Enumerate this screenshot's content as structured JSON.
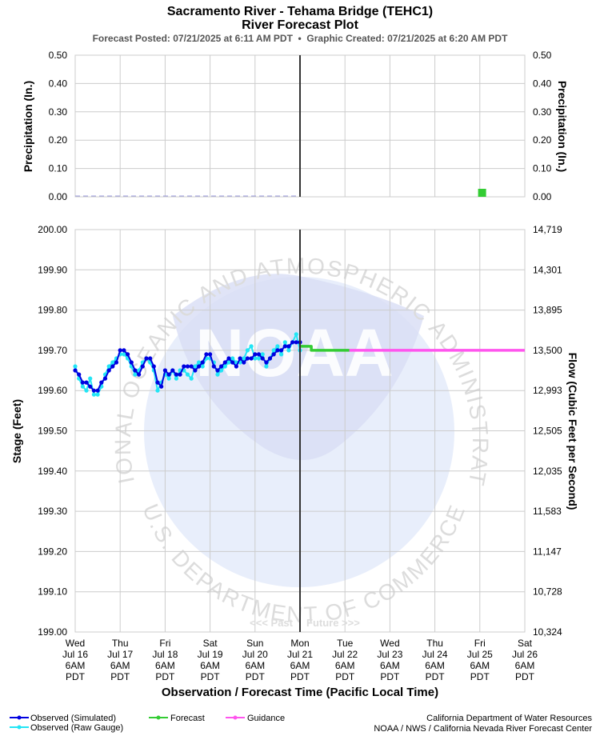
{
  "title": "Sacramento River - Tehama Bridge (TEHC1)",
  "subtitle": "River Forecast Plot",
  "posted_line": "Forecast Posted: 07/21/2025 at 6:11 AM PDT  •  Graphic Created: 07/21/2025 at 6:20 AM PDT",
  "past_label": "<<< Past",
  "future_label": "Future >>>",
  "watermark": {
    "ring_text_top": "NATIONAL OCEANIC AND ATMOSPHERIC ADMINISTRATION",
    "ring_text_bottom": "U.S. DEPARTMENT OF COMMERCE",
    "center_text": "NOAA"
  },
  "legend": {
    "observed_simulated": "Observed (Simulated)",
    "observed_raw": "Observed (Raw Gauge)",
    "forecast": "Forecast",
    "guidance": "Guidance"
  },
  "credits": {
    "line1": "California Department of Water Resources",
    "line2": "NOAA / NWS / California Nevada River Forecast Center"
  },
  "colors": {
    "observed_simulated": "#0000e0",
    "observed_raw": "#22e5f5",
    "forecast": "#33cc33",
    "guidance": "#ff55ee",
    "grid": "#cccccc",
    "now_line": "#333333",
    "watermark": "#e8eefb"
  },
  "chart_data": [
    {
      "type": "bar",
      "name": "precipitation",
      "ylabel": "Precipitation (In.)",
      "ylabel_right": "Precipitation (In.)",
      "ylim": [
        0,
        0.5
      ],
      "yticks": [
        "0.50",
        "0.40",
        "0.30",
        "0.20",
        "0.10",
        "0.00"
      ],
      "ytick_values": [
        0.5,
        0.4,
        0.3,
        0.2,
        0.1,
        0.0
      ],
      "observed_days": [
        0,
        5
      ],
      "forecast_bars": [
        {
          "x_day": 9.05,
          "value": 0.01
        }
      ]
    },
    {
      "type": "line",
      "name": "stage",
      "xlabel": "Observation / Forecast Time (Pacific Local Time)",
      "ylabel": "Stage (Feet)",
      "ylabel_right": "Flow (Cubic Feet per Second)",
      "ylim": [
        199.0,
        200.0
      ],
      "yticks": [
        "200.00",
        "199.90",
        "199.80",
        "199.70",
        "199.60",
        "199.50",
        "199.40",
        "199.30",
        "199.20",
        "199.10",
        "199.00"
      ],
      "ytick_values": [
        200.0,
        199.9,
        199.8,
        199.7,
        199.6,
        199.5,
        199.4,
        199.3,
        199.2,
        199.1,
        199.0
      ],
      "yticks_right": [
        "14,719",
        "14,301",
        "13,895",
        "13,500",
        "12,993",
        "12,505",
        "12,035",
        "11,583",
        "11,147",
        "10,728",
        "10,324"
      ],
      "x_ticks": [
        {
          "day": "Wed",
          "date": "Jul 16",
          "time": "6AM",
          "tz": "PDT"
        },
        {
          "day": "Thu",
          "date": "Jul 17",
          "time": "6AM",
          "tz": "PDT"
        },
        {
          "day": "Fri",
          "date": "Jul 18",
          "time": "6AM",
          "tz": "PDT"
        },
        {
          "day": "Sat",
          "date": "Jul 19",
          "time": "6AM",
          "tz": "PDT"
        },
        {
          "day": "Sun",
          "date": "Jul 20",
          "time": "6AM",
          "tz": "PDT"
        },
        {
          "day": "Mon",
          "date": "Jul 21",
          "time": "6AM",
          "tz": "PDT"
        },
        {
          "day": "Tue",
          "date": "Jul 22",
          "time": "6AM",
          "tz": "PDT"
        },
        {
          "day": "Wed",
          "date": "Jul 23",
          "time": "6AM",
          "tz": "PDT"
        },
        {
          "day": "Thu",
          "date": "Jul 24",
          "time": "6AM",
          "tz": "PDT"
        },
        {
          "day": "Fri",
          "date": "Jul 25",
          "time": "6AM",
          "tz": "PDT"
        },
        {
          "day": "Sat",
          "date": "Jul 26",
          "time": "6AM",
          "tz": "PDT"
        }
      ],
      "now_day": 5,
      "series": [
        {
          "name": "Observed (Simulated)",
          "x_days": [
            0,
            0.083,
            0.167,
            0.25,
            0.333,
            0.417,
            0.5,
            0.583,
            0.667,
            0.75,
            0.833,
            0.917,
            1.0,
            1.083,
            1.167,
            1.25,
            1.333,
            1.417,
            1.5,
            1.583,
            1.667,
            1.75,
            1.833,
            1.917,
            2.0,
            2.083,
            2.167,
            2.25,
            2.333,
            2.417,
            2.5,
            2.583,
            2.667,
            2.75,
            2.833,
            2.917,
            3.0,
            3.083,
            3.167,
            3.25,
            3.333,
            3.417,
            3.5,
            3.583,
            3.667,
            3.75,
            3.833,
            3.917,
            4.0,
            4.083,
            4.167,
            4.25,
            4.333,
            4.417,
            4.5,
            4.583,
            4.667,
            4.75,
            4.833,
            4.917,
            5.0
          ],
          "values": [
            199.65,
            199.64,
            199.62,
            199.62,
            199.61,
            199.6,
            199.6,
            199.62,
            199.63,
            199.65,
            199.66,
            199.67,
            199.7,
            199.7,
            199.69,
            199.67,
            199.65,
            199.64,
            199.66,
            199.68,
            199.68,
            199.66,
            199.62,
            199.61,
            199.65,
            199.64,
            199.65,
            199.64,
            199.64,
            199.66,
            199.66,
            199.66,
            199.65,
            199.66,
            199.67,
            199.69,
            199.69,
            199.66,
            199.65,
            199.66,
            199.67,
            199.68,
            199.67,
            199.66,
            199.68,
            199.67,
            199.68,
            199.68,
            199.69,
            199.69,
            199.68,
            199.67,
            199.68,
            199.69,
            199.7,
            199.7,
            199.71,
            199.71,
            199.72,
            199.72,
            199.72
          ]
        },
        {
          "name": "Observed (Raw Gauge)",
          "x_days": [
            0,
            0.083,
            0.167,
            0.25,
            0.333,
            0.417,
            0.5,
            0.583,
            0.667,
            0.75,
            0.833,
            0.917,
            1.0,
            1.083,
            1.167,
            1.25,
            1.333,
            1.417,
            1.5,
            1.583,
            1.667,
            1.75,
            1.833,
            1.917,
            2.0,
            2.083,
            2.167,
            2.25,
            2.333,
            2.417,
            2.5,
            2.583,
            2.667,
            2.75,
            2.833,
            2.917,
            3.0,
            3.083,
            3.167,
            3.25,
            3.333,
            3.417,
            3.5,
            3.583,
            3.667,
            3.75,
            3.833,
            3.917,
            4.0,
            4.083,
            4.167,
            4.25,
            4.333,
            4.417,
            4.5,
            4.583,
            4.667,
            4.75,
            4.833,
            4.917,
            5.0
          ],
          "values": [
            199.66,
            199.63,
            199.61,
            199.6,
            199.63,
            199.59,
            199.59,
            199.61,
            199.64,
            199.66,
            199.67,
            199.68,
            199.69,
            199.69,
            199.68,
            199.66,
            199.64,
            199.65,
            199.67,
            199.68,
            199.67,
            199.65,
            199.6,
            199.62,
            199.64,
            199.63,
            199.65,
            199.63,
            199.65,
            199.65,
            199.64,
            199.63,
            199.66,
            199.67,
            199.66,
            199.68,
            199.68,
            199.67,
            199.64,
            199.65,
            199.66,
            199.67,
            199.68,
            199.67,
            199.67,
            199.68,
            199.7,
            199.71,
            199.68,
            199.68,
            199.69,
            199.66,
            199.68,
            199.7,
            199.71,
            199.69,
            199.72,
            199.7,
            199.72,
            199.74,
            199.7
          ]
        },
        {
          "name": "Forecast",
          "x_days": [
            5.0,
            5.25,
            5.25,
            5.5,
            6.0,
            6.1
          ],
          "values": [
            199.71,
            199.71,
            199.7,
            199.7,
            199.7,
            199.7
          ]
        },
        {
          "name": "Guidance",
          "x_days": [
            6.1,
            10.0
          ],
          "values": [
            199.7,
            199.7
          ]
        }
      ]
    }
  ]
}
